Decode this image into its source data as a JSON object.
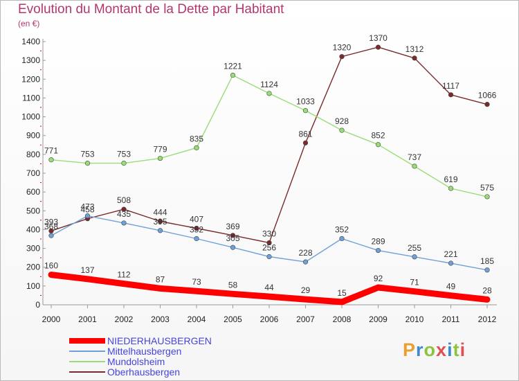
{
  "title": "Evolution du Montant de la Dette par Habitant",
  "unit": "(en €)",
  "logo": {
    "text": "Proxiti",
    "colors": [
      "#e8a030",
      "#3a8ad0",
      "#8cc43c",
      "#e05050",
      "#3a8ad0",
      "#8cc43c",
      "#e05050"
    ]
  },
  "chart_data": {
    "type": "line",
    "x": [
      "2000",
      "2001",
      "2002",
      "2003",
      "2004",
      "2005",
      "2006",
      "2007",
      "2008",
      "2009",
      "2010",
      "2011",
      "2012"
    ],
    "ylim": [
      0,
      1400
    ],
    "yticks": [
      0,
      100,
      200,
      300,
      400,
      500,
      600,
      700,
      800,
      900,
      1000,
      1100,
      1200,
      1300,
      1400
    ],
    "grid": false,
    "legend_position": "bottom-left",
    "series": [
      {
        "name": "NIEDERHAUSBERGEN",
        "color": "#ff0000",
        "bold": true,
        "values": [
          160,
          137,
          112,
          87,
          73,
          58,
          44,
          29,
          15,
          92,
          71,
          49,
          28
        ]
      },
      {
        "name": "Mittelhausbergen",
        "color": "#6fa0d8",
        "bold": false,
        "values": [
          368,
          473,
          435,
          395,
          352,
          305,
          256,
          228,
          352,
          289,
          255,
          221,
          185
        ]
      },
      {
        "name": "Mundolsheim",
        "color": "#99dd77",
        "bold": false,
        "values": [
          771,
          753,
          753,
          779,
          835,
          1221,
          1124,
          1033,
          928,
          852,
          737,
          619,
          575
        ]
      },
      {
        "name": "Oberhausbergen",
        "color": "#7a2a2a",
        "bold": false,
        "values": [
          393,
          458,
          508,
          444,
          407,
          369,
          330,
          861,
          1320,
          1370,
          1312,
          1117,
          1066
        ]
      }
    ]
  }
}
